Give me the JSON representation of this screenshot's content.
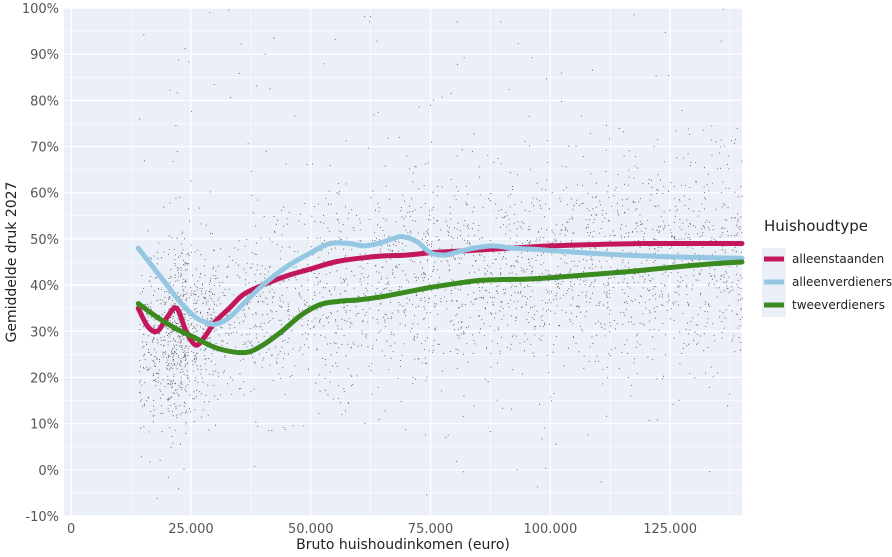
{
  "chart_data": {
    "type": "scatter",
    "title": "",
    "xlabel": "Bruto huishoudinkomen (euro)",
    "ylabel": "Gemiddelde druk 2027",
    "xlim": [
      -1500,
      140000
    ],
    "ylim": [
      -10,
      100
    ],
    "x_ticks": [
      {
        "value": 0,
        "label": "0"
      },
      {
        "value": 25000,
        "label": "25.000"
      },
      {
        "value": 50000,
        "label": "50.000"
      },
      {
        "value": 75000,
        "label": "75.000"
      },
      {
        "value": 100000,
        "label": "100.000"
      },
      {
        "value": 125000,
        "label": "125.000"
      }
    ],
    "y_ticks": [
      {
        "value": -10,
        "label": "-10%"
      },
      {
        "value": 0,
        "label": "0%"
      },
      {
        "value": 10,
        "label": "10%"
      },
      {
        "value": 20,
        "label": "20%"
      },
      {
        "value": 30,
        "label": "30%"
      },
      {
        "value": 40,
        "label": "40%"
      },
      {
        "value": 50,
        "label": "50%"
      },
      {
        "value": 60,
        "label": "60%"
      },
      {
        "value": 70,
        "label": "70%"
      },
      {
        "value": 80,
        "label": "80%"
      },
      {
        "value": 90,
        "label": "90%"
      },
      {
        "value": 100,
        "label": "100%"
      }
    ],
    "grid": true,
    "background": "#ebf0f8",
    "scatter_color": "#333333",
    "legend": {
      "title": "Huishoudtype",
      "position": "right"
    },
    "series": [
      {
        "name": "alleenstaanden",
        "color": "#c2185b",
        "points": [
          [
            14000,
            35
          ],
          [
            16000,
            31
          ],
          [
            18000,
            30
          ],
          [
            20000,
            33
          ],
          [
            22000,
            35
          ],
          [
            24000,
            30
          ],
          [
            26000,
            27
          ],
          [
            28000,
            29
          ],
          [
            30000,
            32
          ],
          [
            33000,
            35
          ],
          [
            36000,
            38
          ],
          [
            40000,
            40
          ],
          [
            45000,
            42
          ],
          [
            50000,
            43.5
          ],
          [
            55000,
            45
          ],
          [
            60000,
            45.8
          ],
          [
            65000,
            46.3
          ],
          [
            70000,
            46.5
          ],
          [
            75000,
            47
          ],
          [
            80000,
            47.3
          ],
          [
            85000,
            47.6
          ],
          [
            90000,
            47.9
          ],
          [
            95000,
            48.2
          ],
          [
            100000,
            48.5
          ],
          [
            110000,
            48.8
          ],
          [
            120000,
            49
          ],
          [
            130000,
            49
          ],
          [
            140000,
            49
          ]
        ]
      },
      {
        "name": "alleenverdieners",
        "color": "#95c7e3",
        "points": [
          [
            14000,
            48
          ],
          [
            17000,
            44
          ],
          [
            20000,
            40
          ],
          [
            23000,
            36
          ],
          [
            26000,
            33
          ],
          [
            28000,
            32
          ],
          [
            30000,
            31.5
          ],
          [
            33000,
            33
          ],
          [
            36000,
            36
          ],
          [
            40000,
            40
          ],
          [
            45000,
            44
          ],
          [
            50000,
            47
          ],
          [
            54000,
            49
          ],
          [
            58000,
            49
          ],
          [
            61000,
            48.5
          ],
          [
            64000,
            49
          ],
          [
            67000,
            50
          ],
          [
            69000,
            50.5
          ],
          [
            72000,
            49.5
          ],
          [
            75000,
            47
          ],
          [
            78000,
            46.5
          ],
          [
            80000,
            47
          ],
          [
            84000,
            48
          ],
          [
            88000,
            48.5
          ],
          [
            92000,
            48
          ],
          [
            96000,
            47.8
          ],
          [
            100000,
            47.5
          ],
          [
            110000,
            46.8
          ],
          [
            120000,
            46.3
          ],
          [
            130000,
            46
          ],
          [
            140000,
            45.8
          ]
        ]
      },
      {
        "name": "tweeverdieners",
        "color": "#3a8a1f",
        "points": [
          [
            14000,
            36
          ],
          [
            18000,
            33
          ],
          [
            22000,
            30.5
          ],
          [
            26000,
            28.5
          ],
          [
            30000,
            26.5
          ],
          [
            34000,
            25.5
          ],
          [
            37000,
            25.5
          ],
          [
            40000,
            27
          ],
          [
            44000,
            30
          ],
          [
            48000,
            33.5
          ],
          [
            52000,
            35.8
          ],
          [
            56000,
            36.5
          ],
          [
            60000,
            36.8
          ],
          [
            65000,
            37.5
          ],
          [
            70000,
            38.5
          ],
          [
            75000,
            39.5
          ],
          [
            80000,
            40.3
          ],
          [
            85000,
            41
          ],
          [
            90000,
            41.2
          ],
          [
            95000,
            41.3
          ],
          [
            100000,
            41.6
          ],
          [
            105000,
            42
          ],
          [
            110000,
            42.4
          ],
          [
            115000,
            42.8
          ],
          [
            120000,
            43.3
          ],
          [
            125000,
            43.8
          ],
          [
            130000,
            44.3
          ],
          [
            135000,
            44.7
          ],
          [
            140000,
            45
          ]
        ]
      }
    ]
  }
}
